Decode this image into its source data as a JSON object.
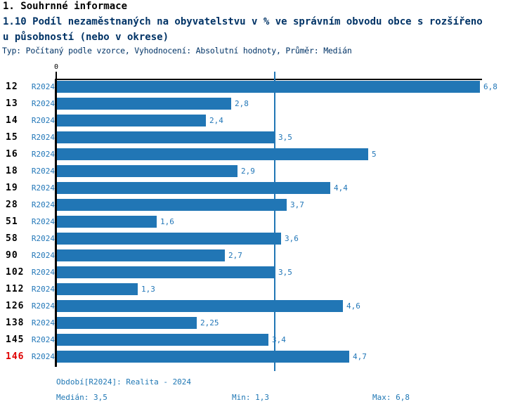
{
  "header": {
    "title": "1. Souhrnné informace",
    "subtitle_line1": "1.10 Podíl nezaměstnaných na obyvatelstvu v % ve správním obvodu obce s rozšířeno",
    "subtitle_line2": "u působností (nebo v okrese)",
    "meta": "Typ: Počítaný podle vzorce, Vyhodnocení: Absolutní hodnoty, Průměr: Medián"
  },
  "chart": {
    "axis_zero_label": "0",
    "rows": [
      {
        "category": "12",
        "series": "R2024",
        "value": 6.8,
        "value_label": "6,8",
        "highlight": false
      },
      {
        "category": "13",
        "series": "R2024",
        "value": 2.8,
        "value_label": "2,8",
        "highlight": false
      },
      {
        "category": "14",
        "series": "R2024",
        "value": 2.4,
        "value_label": "2,4",
        "highlight": false
      },
      {
        "category": "15",
        "series": "R2024",
        "value": 3.5,
        "value_label": "3,5",
        "highlight": false
      },
      {
        "category": "16",
        "series": "R2024",
        "value": 5,
        "value_label": "5",
        "highlight": false
      },
      {
        "category": "18",
        "series": "R2024",
        "value": 2.9,
        "value_label": "2,9",
        "highlight": false
      },
      {
        "category": "19",
        "series": "R2024",
        "value": 4.4,
        "value_label": "4,4",
        "highlight": false
      },
      {
        "category": "28",
        "series": "R2024",
        "value": 3.7,
        "value_label": "3,7",
        "highlight": false
      },
      {
        "category": "51",
        "series": "R2024",
        "value": 1.6,
        "value_label": "1,6",
        "highlight": false
      },
      {
        "category": "58",
        "series": "R2024",
        "value": 3.6,
        "value_label": "3,6",
        "highlight": false
      },
      {
        "category": "90",
        "series": "R2024",
        "value": 2.7,
        "value_label": "2,7",
        "highlight": false
      },
      {
        "category": "102",
        "series": "R2024",
        "value": 3.5,
        "value_label": "3,5",
        "highlight": false
      },
      {
        "category": "112",
        "series": "R2024",
        "value": 1.3,
        "value_label": "1,3",
        "highlight": false
      },
      {
        "category": "126",
        "series": "R2024",
        "value": 4.6,
        "value_label": "4,6",
        "highlight": false
      },
      {
        "category": "138",
        "series": "R2024",
        "value": 2.25,
        "value_label": "2,25",
        "highlight": false
      },
      {
        "category": "145",
        "series": "R2024",
        "value": 3.4,
        "value_label": "3,4",
        "highlight": false
      },
      {
        "category": "146",
        "series": "R2024",
        "value": 4.7,
        "value_label": "4,7",
        "highlight": true
      }
    ]
  },
  "footer": {
    "period": "Období[R2024]: Realita - 2024",
    "median": "Medián: 3,5",
    "min": "Min: 1,3",
    "max": "Max: 6,8"
  },
  "colors": {
    "bar": "#2176b5",
    "text_blue": "#2277b8",
    "footer_blue": "#1f77b4",
    "title_navy": "#003366",
    "highlight_red": "#e00000",
    "axis_black": "#000000"
  },
  "chart_data": {
    "type": "bar",
    "orientation": "horizontal",
    "title": "1.10 Podíl nezaměstnaných na obyvatelstvu v % ve správním obvodu obce s rozšířenou působností (nebo v okrese)",
    "series_name": "R2024",
    "categories": [
      "12",
      "13",
      "14",
      "15",
      "16",
      "18",
      "19",
      "28",
      "51",
      "58",
      "90",
      "102",
      "112",
      "126",
      "138",
      "145",
      "146"
    ],
    "values": [
      6.8,
      2.8,
      2.4,
      3.5,
      5,
      2.9,
      4.4,
      3.7,
      1.6,
      3.6,
      2.7,
      3.5,
      1.3,
      4.6,
      2.25,
      3.4,
      4.7
    ],
    "highlighted_category": "146",
    "xlim": [
      0,
      6.8
    ],
    "x_ticks": [
      0
    ],
    "median_line": 3.5,
    "median": 3.5,
    "min": 1.3,
    "max": 6.8,
    "grid": false,
    "legend": false
  }
}
